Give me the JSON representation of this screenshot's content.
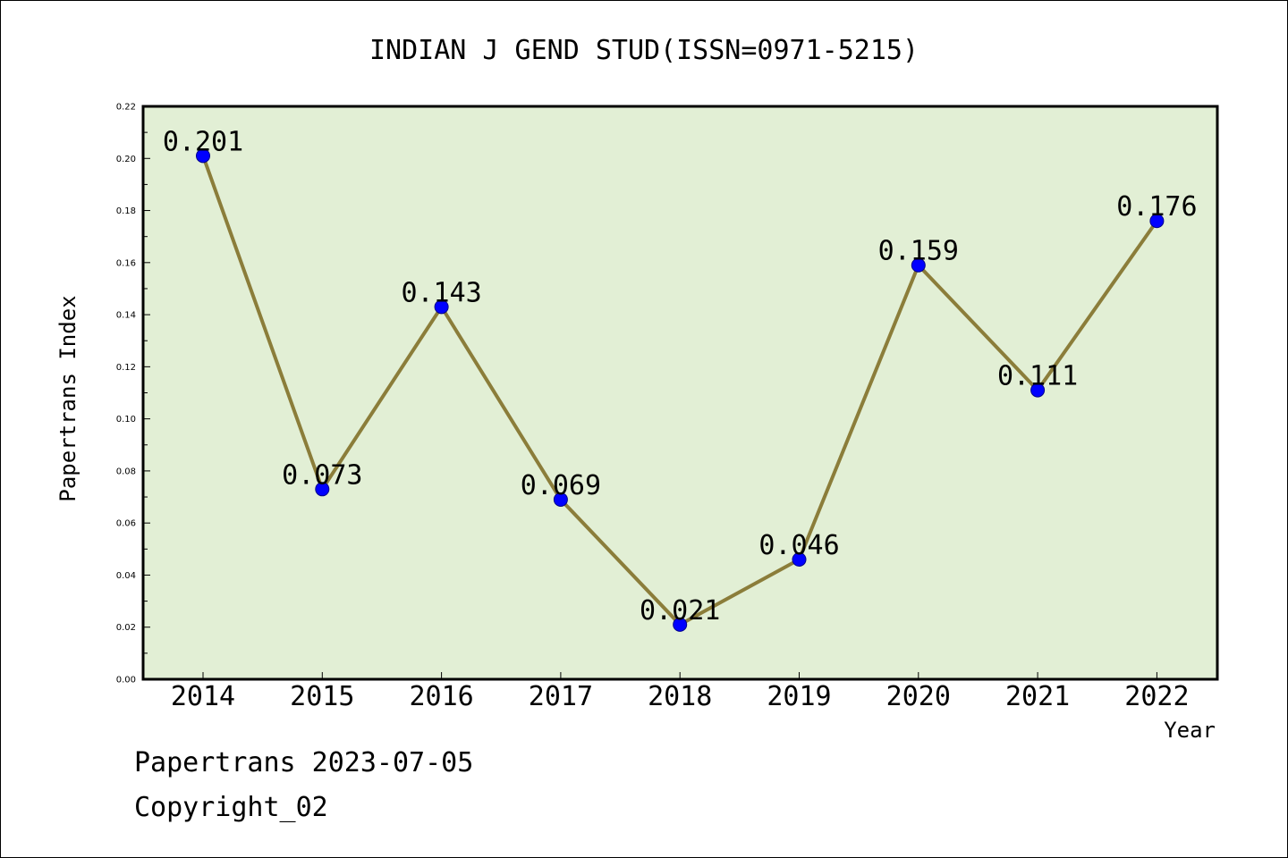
{
  "chart_data": {
    "type": "line",
    "title": "INDIAN J GEND STUD(ISSN=0971-5215)",
    "xlabel": "Year",
    "ylabel": "Papertrans Index",
    "categories": [
      "2014",
      "2015",
      "2016",
      "2017",
      "2018",
      "2019",
      "2020",
      "2021",
      "2022"
    ],
    "series": [
      {
        "values": [
          0.201,
          0.073,
          0.143,
          0.069,
          0.021,
          0.046,
          0.159,
          0.111,
          0.176
        ],
        "data_labels": [
          "0.201",
          "0.073",
          "0.143",
          "0.069",
          "0.021",
          "0.046",
          "0.159",
          "0.111",
          "0.176"
        ]
      }
    ],
    "ylim": [
      0,
      0.22
    ],
    "yticks": [
      "0.00",
      "0.02",
      "0.04",
      "0.06",
      "0.08",
      "0.10",
      "0.12",
      "0.14",
      "0.16",
      "0.18",
      "0.20",
      "0.22"
    ],
    "grid": false,
    "colors": {
      "plot_background": "#e2efd5",
      "line": "#8b7d3a",
      "marker": "#0000ff",
      "axes": "#000000"
    }
  },
  "footer": {
    "line1": "Papertrans 2023-07-05",
    "line2": "Copyright_02"
  }
}
